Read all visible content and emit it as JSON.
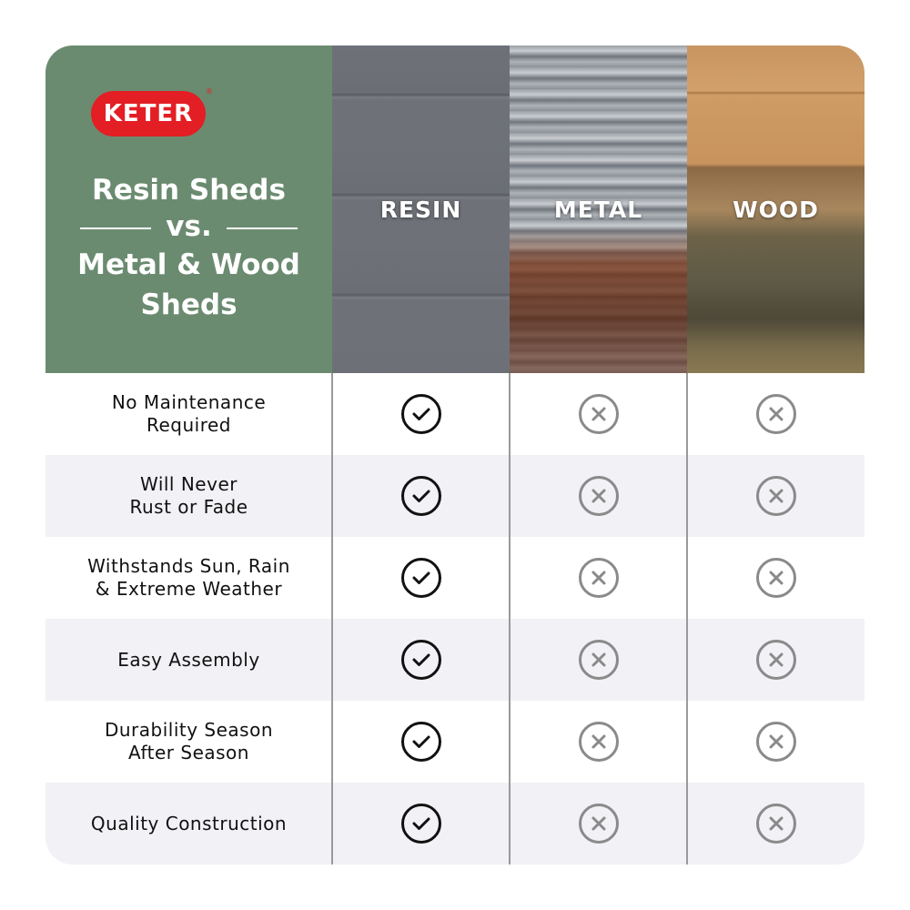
{
  "brand": {
    "logo_text": "KETER",
    "registered": "®",
    "color": "#e31e24"
  },
  "heading": {
    "line1": "Resin Sheds",
    "line2": "vs.",
    "line3": "Metal & Wood",
    "line4": "Sheds",
    "panel_color": "#6b8b70"
  },
  "columns": [
    "RESIN",
    "METAL",
    "WOOD"
  ],
  "rows": [
    {
      "label": "No Maintenance\nRequired",
      "values": [
        "check",
        "cross",
        "cross"
      ]
    },
    {
      "label": "Will Never\nRust or Fade",
      "values": [
        "check",
        "cross",
        "cross"
      ]
    },
    {
      "label": "Withstands Sun, Rain\n& Extreme Weather",
      "values": [
        "check",
        "cross",
        "cross"
      ]
    },
    {
      "label": "Easy Assembly",
      "values": [
        "check",
        "cross",
        "cross"
      ]
    },
    {
      "label": "Durability Season\nAfter Season",
      "values": [
        "check",
        "cross",
        "cross"
      ]
    },
    {
      "label": "Quality Construction",
      "values": [
        "check",
        "cross",
        "cross"
      ]
    }
  ],
  "icons": {
    "check": "check-circle-icon",
    "cross": "x-circle-icon",
    "check_color": "#111111",
    "cross_color": "#8a8a8a"
  }
}
